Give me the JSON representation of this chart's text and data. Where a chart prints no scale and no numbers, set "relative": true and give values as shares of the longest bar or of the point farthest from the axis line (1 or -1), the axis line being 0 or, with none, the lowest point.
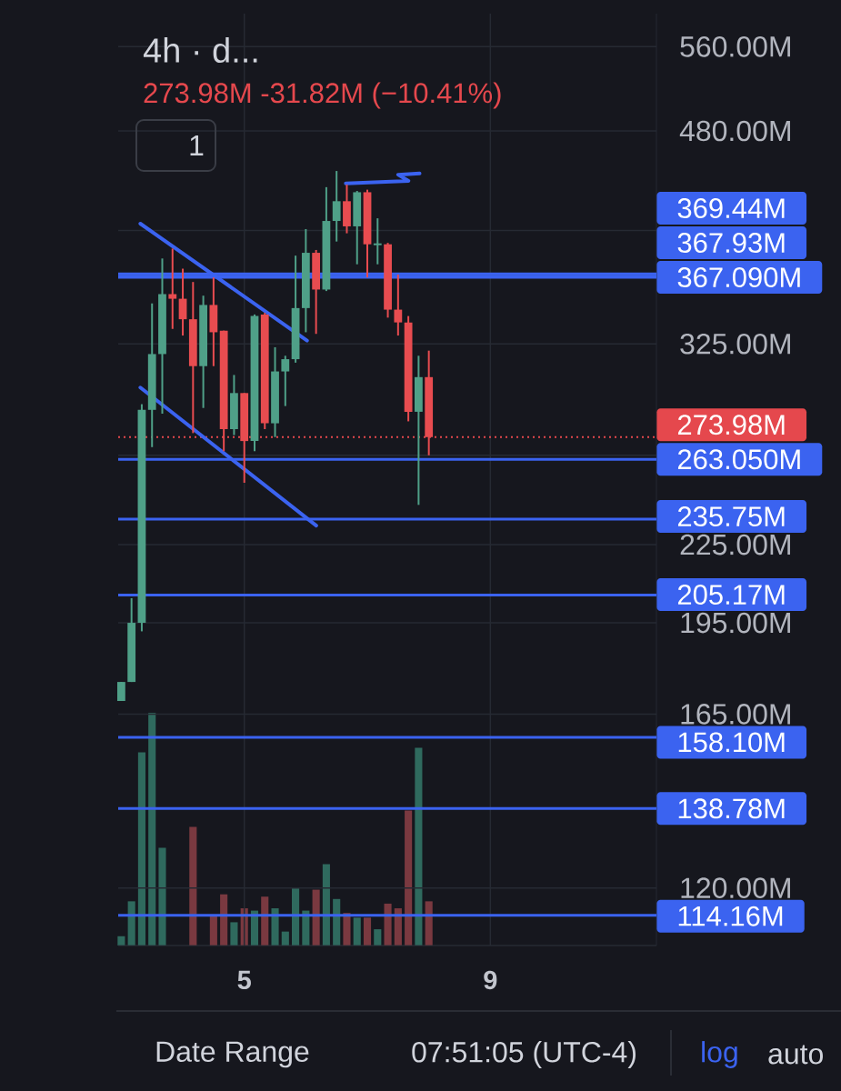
{
  "chart_data": [
    {
      "type": "candlestick",
      "title": "4h · d...",
      "subtitle": "273.98M -31.82M (−10.41%)",
      "x": [
        3,
        3.1667,
        3.3333,
        3.5,
        3.6667,
        3.8333,
        4,
        4.1667,
        4.3333,
        4.5,
        4.6667,
        4.8333,
        5,
        5.1667,
        5.3333,
        5.5,
        5.6667,
        5.8333,
        6,
        6.1667,
        6.3333,
        6.5,
        6.6667,
        6.8333,
        7,
        7.1667,
        7.3333,
        7.5,
        7.6667,
        7.8333,
        8
      ],
      "ohlc": [
        [
          169,
          175,
          169,
          175
        ],
        [
          175,
          204,
          175,
          195
        ],
        [
          195,
          291,
          192,
          288
        ],
        [
          288,
          350,
          269,
          319
        ],
        [
          319,
          380,
          286,
          356
        ],
        [
          356,
          387,
          334,
          353
        ],
        [
          353,
          373,
          330,
          340
        ],
        [
          340,
          364,
          276,
          312
        ],
        [
          312,
          355,
          289,
          349
        ],
        [
          349,
          367,
          312,
          332
        ],
        [
          333,
          333,
          267,
          278
        ],
        [
          278,
          307,
          275,
          297
        ],
        [
          297,
          297,
          252,
          272
        ],
        [
          272,
          343,
          267,
          342
        ],
        [
          343,
          344,
          278,
          281
        ],
        [
          281,
          323,
          274,
          309
        ],
        [
          309,
          318,
          290,
          316
        ],
        [
          316,
          382,
          314,
          347
        ],
        [
          347,
          401,
          332,
          384
        ],
        [
          384,
          386,
          331,
          359
        ],
        [
          359,
          433,
          358,
          407
        ],
        [
          407,
          446,
          392,
          422
        ],
        [
          422,
          435,
          398,
          403
        ],
        [
          403,
          430,
          376,
          429
        ],
        [
          429,
          431,
          367,
          390
        ],
        [
          390,
          409,
          376,
          390
        ],
        [
          390,
          391,
          341,
          346
        ],
        [
          346,
          369,
          330,
          338
        ],
        [
          338,
          342,
          282,
          287
        ],
        [
          287,
          318,
          242,
          305.8
        ],
        [
          305.8,
          321,
          265,
          273.98
        ]
      ],
      "colors": [
        "#4FA088",
        "#4FA088",
        "#4FA088",
        "#4FA088",
        "#4FA088",
        "#E84C50",
        "#E84C50",
        "#E84C50",
        "#4FA088",
        "#E84C50",
        "#E84C50",
        "#4FA088",
        "#E84C50",
        "#4FA088",
        "#E84C50",
        "#4FA088",
        "#4FA088",
        "#4FA088",
        "#4FA088",
        "#E84C50",
        "#4FA088",
        "#4FA088",
        "#E84C50",
        "#4FA088",
        "#E84C50",
        "#4FA088",
        "#E84C50",
        "#E84C50",
        "#E84C50",
        "#4FA088",
        "#E84C50"
      ],
      "series": [
        {
          "type": "line",
          "x": [
            3.31,
            6.02
          ],
          "values": [
            405,
            327
          ],
          "color": "#3B63F0"
        },
        {
          "type": "line",
          "x": [
            3.31,
            6.17
          ],
          "values": [
            300,
            233
          ],
          "color": "#3B63F0"
        },
        {
          "type": "line",
          "x": [
            6.65,
            7.67,
            7.5,
            7.85
          ],
          "values": [
            436,
            438,
            443,
            444
          ],
          "color": "#3B63F0"
        }
      ],
      "ref_lines": [
        {
          "axis": "y",
          "value": 369.44,
          "label": "369.44M",
          "color": "#3B63F0"
        },
        {
          "axis": "y",
          "value": 367.93,
          "label": "367.93M",
          "color": "#3B63F0"
        },
        {
          "axis": "y",
          "value": 367.09,
          "label": "367.090M",
          "color": "#3B63F0"
        },
        {
          "axis": "y",
          "value": 273.98,
          "label": "273.98M",
          "color": "#E5484D",
          "line_style": "dotted"
        },
        {
          "axis": "y",
          "value": 263.05,
          "label": "263.050M",
          "color": "#3B63F0"
        },
        {
          "axis": "y",
          "value": 235.75,
          "label": "235.75M",
          "color": "#3B63F0"
        },
        {
          "axis": "y",
          "value": 205.17,
          "label": "205.17M",
          "color": "#3B63F0"
        },
        {
          "axis": "y",
          "value": 158.1,
          "label": "158.10M",
          "color": "#3B63F0"
        },
        {
          "axis": "y",
          "value": 138.78,
          "label": "138.78M",
          "color": "#3B63F0"
        },
        {
          "axis": "y",
          "value": 114.16,
          "label": "114.16M",
          "color": "#3B63F0"
        }
      ],
      "xlim": [
        2.95,
        11.7
      ],
      "xticks": [
        5,
        9
      ],
      "ylim": [
        108,
        595
      ],
      "yticks": [
        {
          "value": 120,
          "label": "120.00M"
        },
        {
          "value": 165,
          "label": "165.00M"
        },
        {
          "value": 195,
          "label": "195.00M"
        },
        {
          "value": 225,
          "label": "225.00M"
        },
        {
          "value": 265,
          "label": null
        },
        {
          "value": 325,
          "label": "325.00M"
        },
        {
          "value": 400,
          "label": null
        },
        {
          "value": 480,
          "label": "480.00M"
        },
        {
          "value": 560,
          "label": "560.00M"
        }
      ],
      "log": "y",
      "grid": true,
      "annotations": [
        "1",
        "Date Range",
        "07:51:05 (UTC-4)",
        "log",
        "auto"
      ]
    },
    {
      "type": "bar",
      "relative": true,
      "xlim": [
        2.95,
        11.7
      ],
      "x": [
        3,
        3.1667,
        3.3333,
        3.5,
        3.6667,
        3.8333,
        4,
        4.1667,
        4.3333,
        4.5,
        4.6667,
        4.8333,
        5,
        5.1667,
        5.3333,
        5.5,
        5.6667,
        5.8333,
        6,
        6.1667,
        6.3333,
        6.5,
        6.6667,
        6.8333,
        7,
        7.1667,
        7.3333,
        7.5,
        7.6667,
        7.8333,
        8
      ],
      "values": [
        0.04,
        0.19,
        0.83,
        1,
        0.42,
        null,
        null,
        0.51,
        null,
        0.13,
        0.22,
        0.1,
        0.16,
        0.15,
        0.21,
        0.16,
        0.06,
        0.25,
        0.15,
        0.24,
        0.35,
        0.2,
        0.14,
        0.12,
        0.12,
        0.07,
        0.18,
        0.16,
        0.58,
        0.85,
        0.19
      ],
      "colors": [
        "#2F6A5E",
        "#2F6A5E",
        "#2F6A5E",
        "#2F6A5E",
        "#2F6A5E",
        null,
        null,
        "#7A3940",
        null,
        "#7A3940",
        "#7A3940",
        "#2F6A5E",
        "#7A3940",
        "#2F6A5E",
        "#7A3940",
        "#2F6A5E",
        "#2F6A5E",
        "#2F6A5E",
        "#2F6A5E",
        "#7A3940",
        "#2F6A5E",
        "#2F6A5E",
        "#7A3940",
        "#2F6A5E",
        "#7A3940",
        "#2F6A5E",
        "#7A3940",
        "#7A3940",
        "#7A3940",
        "#2F6A5E",
        "#7A3940"
      ]
    }
  ]
}
